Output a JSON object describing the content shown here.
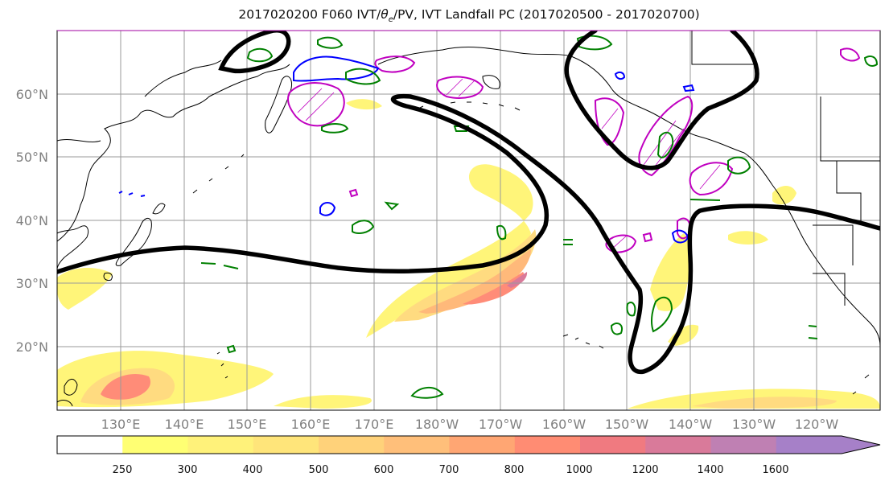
{
  "title": {
    "text": "2017020200 F060 IVT/θe/PV, IVT Landfall PC (2017020500 - 2017020700)",
    "prefix": "2017020200 F060 IVT/",
    "theta": "θ",
    "sub": "e",
    "suffix": "/PV, IVT Landfall PC (2017020500 - 2017020700)"
  },
  "map": {
    "lat_labels": [
      "60°N",
      "50°N",
      "40°N",
      "30°N",
      "20°N"
    ],
    "lon_labels": [
      "130°E",
      "140°E",
      "150°E",
      "160°E",
      "170°E",
      "180°W",
      "170°W",
      "160°W",
      "150°W",
      "140°W",
      "130°W",
      "120°W"
    ],
    "colors": {
      "jet_contour": "#000000",
      "theta_e_contour": "#008000",
      "pv_contour_magenta": "#c000c0",
      "pv_contour_blue": "#0000ff",
      "coastline": "#000000",
      "gridline": "#9a9a9a"
    }
  },
  "colorbar": {
    "ticks": [
      "250",
      "300",
      "400",
      "500",
      "600",
      "700",
      "800",
      "1000",
      "1200",
      "1400",
      "1600"
    ],
    "colors": [
      "#ffffff",
      "#ffff73",
      "#fff27a",
      "#ffe57a",
      "#ffd27a",
      "#ffbf7a",
      "#ffa673",
      "#ff8c73",
      "#f07a80",
      "#d97a9a",
      "#bf80b3",
      "#a680c8"
    ],
    "extend": "max"
  }
}
